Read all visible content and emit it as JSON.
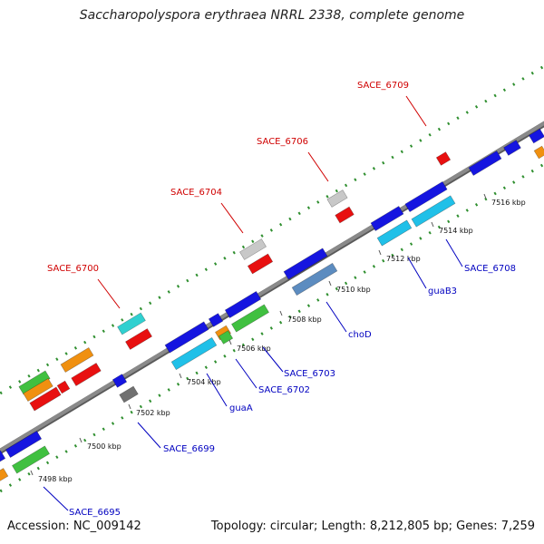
{
  "title": "Saccharopolyspora erythraea NRRL 2338, complete genome",
  "accession_text": "Accession: NC_009142",
  "stats_text": "Topology: circular; Length: 8,212,805 bp; Genes: 7,259",
  "colors": {
    "backbone": "#8a8a8a",
    "dots": "#2f8f2f",
    "label_red": "#d00000",
    "label_blue": "#0000c0",
    "gene_blue": "#1515e0",
    "gene_cyan": "#20c0e8",
    "gene_green": "#40c040",
    "gene_orange": "#f09010",
    "gene_red": "#e81010",
    "gene_gray": "#c8c8c8",
    "gene_darkgray": "#707070",
    "gene_teal": "#30d0d0",
    "gene_steel": "#5c8cc0"
  },
  "ticks": [
    {
      "label": "7498 kbp",
      "kbp": 7498
    },
    {
      "label": "7500 kbp",
      "kbp": 7500
    },
    {
      "label": "7502 kbp",
      "kbp": 7502
    },
    {
      "label": "7504 kbp",
      "kbp": 7504
    },
    {
      "label": "7506 kbp",
      "kbp": 7506
    },
    {
      "label": "7508 kbp",
      "kbp": 7508
    },
    {
      "label": "7510 kbp",
      "kbp": 7510
    },
    {
      "label": "7512 kbp",
      "kbp": 7512
    },
    {
      "label": "7514 kbp",
      "kbp": 7514
    },
    {
      "label": "7516 kbp",
      "kbp": 7516
    }
  ],
  "labels": [
    {
      "text": "SACE_6700",
      "strand": "top"
    },
    {
      "text": "SACE_6704",
      "strand": "top"
    },
    {
      "text": "SACE_6706",
      "strand": "top"
    },
    {
      "text": "SACE_6709",
      "strand": "top"
    },
    {
      "text": "SACE_6695",
      "strand": "bottom"
    },
    {
      "text": "SACE_6699",
      "strand": "bottom"
    },
    {
      "text": "guaA",
      "strand": "bottom"
    },
    {
      "text": "SACE_6702",
      "strand": "bottom"
    },
    {
      "text": "SACE_6703",
      "strand": "bottom"
    },
    {
      "text": "choD",
      "strand": "bottom"
    },
    {
      "text": "guaB3",
      "strand": "bottom"
    },
    {
      "text": "SACE_6708",
      "strand": "bottom"
    }
  ]
}
